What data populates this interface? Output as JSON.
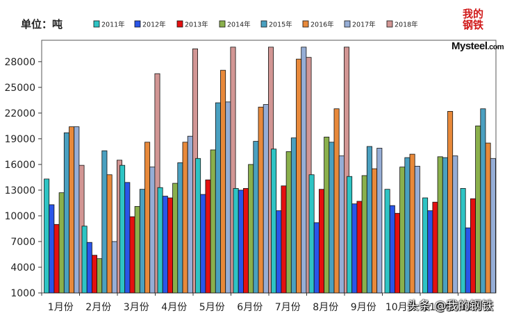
{
  "unit_label": "单位：吨",
  "logo": {
    "cn_line1": "我的",
    "cn_line2": "钢铁",
    "en": "Mysteel",
    "en_suffix": ".com"
  },
  "watermark": "头条 @我的钢铁",
  "colors": {
    "2011年": "#2ec4c4",
    "2012年": "#2a55e8",
    "2013年": "#e41010",
    "2014年": "#8ab04c",
    "2015年": "#4aa0c0",
    "2016年": "#e8893a",
    "2017年": "#96aed6",
    "2018年": "#d29694"
  },
  "chart_data": {
    "type": "bar",
    "title": "",
    "xlabel": "",
    "ylabel": "单位：吨",
    "ylim": [
      1000,
      30500
    ],
    "yticks": [
      1000,
      4000,
      7000,
      10000,
      13000,
      16000,
      19000,
      22000,
      25000,
      28000
    ],
    "grid": false,
    "legend_position": "top",
    "categories": [
      "1月份",
      "2月份",
      "3月份",
      "4月份",
      "5月份",
      "6月份",
      "7月份",
      "8月份",
      "9月份",
      "10月份",
      "11月份",
      "12月份"
    ],
    "series": [
      {
        "name": "2011年",
        "values": [
          14300,
          8800,
          15900,
          13300,
          16700,
          13200,
          17800,
          14800,
          14600,
          13100,
          12100,
          13200
        ]
      },
      {
        "name": "2012年",
        "values": [
          11300,
          6900,
          13900,
          12300,
          12500,
          13000,
          10600,
          9200,
          11400,
          11200,
          10600,
          8600
        ]
      },
      {
        "name": "2013年",
        "values": [
          9000,
          5400,
          9900,
          12100,
          14200,
          13200,
          13500,
          13100,
          11700,
          10300,
          11600,
          12000
        ]
      },
      {
        "name": "2014年",
        "values": [
          12700,
          5000,
          11100,
          13800,
          17700,
          16000,
          17500,
          19200,
          14700,
          15700,
          16900,
          20500
        ]
      },
      {
        "name": "2015年",
        "values": [
          19700,
          17600,
          13100,
          16200,
          23200,
          18700,
          19100,
          18600,
          18100,
          16800,
          16800,
          22500
        ]
      },
      {
        "name": "2016年",
        "values": [
          20400,
          14800,
          18600,
          18600,
          27000,
          22700,
          28300,
          22500,
          15500,
          17200,
          22200,
          18500
        ]
      },
      {
        "name": "2017年",
        "values": [
          20400,
          7000,
          15700,
          19300,
          23300,
          23000,
          29700,
          17000,
          17900,
          15800,
          17000,
          16700
        ]
      },
      {
        "name": "2018年",
        "values": [
          15900,
          16500,
          26600,
          29500,
          29700,
          29700,
          28500,
          29700,
          null,
          null,
          null,
          null
        ]
      }
    ]
  }
}
